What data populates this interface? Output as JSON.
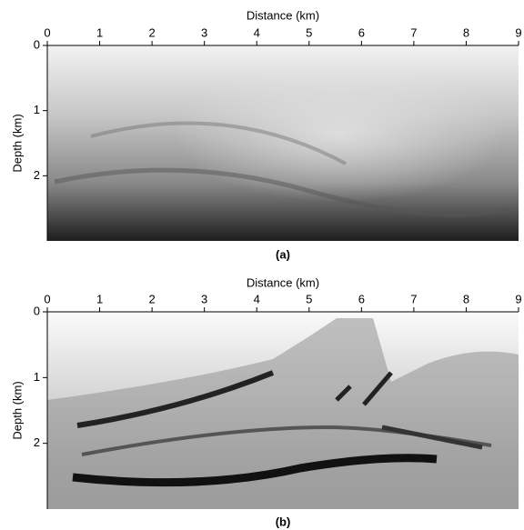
{
  "chart_data": [
    {
      "type": "image",
      "x_label": "Distance (km)",
      "y_label": "Depth (km)",
      "caption": "(a)",
      "xlim": [
        0,
        9
      ],
      "ylim": [
        0,
        3
      ],
      "y_inverted": true,
      "xticks": [
        0,
        1,
        2,
        3,
        4,
        5,
        6,
        7,
        8,
        9
      ],
      "yticks": [
        0,
        1,
        2
      ]
    },
    {
      "type": "image",
      "x_label": "Distance (km)",
      "y_label": "Depth (km)",
      "caption": "(b)",
      "xlim": [
        0,
        9
      ],
      "ylim": [
        0,
        3
      ],
      "y_inverted": true,
      "xticks": [
        0,
        1,
        2,
        3,
        4,
        5,
        6,
        7,
        8,
        9
      ],
      "yticks": [
        0,
        1,
        2
      ]
    }
  ]
}
